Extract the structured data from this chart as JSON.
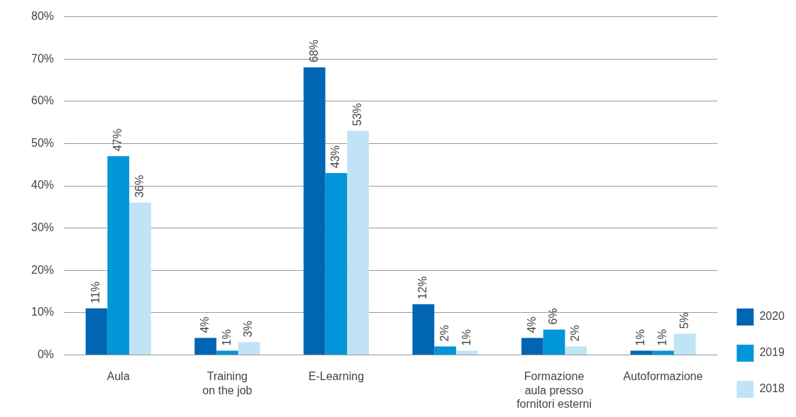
{
  "chart_data": {
    "type": "bar",
    "categories": [
      "Aula",
      "Training\non the job",
      "E-Learning",
      null,
      "Formazione\naula presso\nfornitori esterni",
      "Autoformazione"
    ],
    "series": [
      {
        "name": "2020",
        "color": "#0066b3",
        "values": [
          11,
          4,
          68,
          12,
          4,
          1
        ],
        "value_labels": [
          "11%",
          "4%",
          "68%",
          "12%",
          "4%",
          "1%"
        ]
      },
      {
        "name": "2019",
        "color": "#0096d9",
        "values": [
          47,
          1,
          43,
          2,
          6,
          1
        ],
        "value_labels": [
          "47%",
          "1%",
          "43%",
          "2%",
          "6%",
          "1%"
        ]
      },
      {
        "name": "2018",
        "color": "#c0e4f6",
        "values": [
          36,
          3,
          53,
          1,
          2,
          5
        ],
        "value_labels": [
          "36%",
          "3%",
          "53%",
          "1%",
          "2%",
          "5%"
        ]
      }
    ],
    "ylim": [
      0,
      80
    ],
    "yticks": [
      {
        "value": 0,
        "label": "0%"
      },
      {
        "value": 10,
        "label": "10%"
      },
      {
        "value": 20,
        "label": "20%"
      },
      {
        "value": 30,
        "label": "30%"
      },
      {
        "value": 40,
        "label": "40%"
      },
      {
        "value": 50,
        "label": "50%"
      },
      {
        "value": 60,
        "label": "60%"
      },
      {
        "value": 70,
        "label": "70%"
      },
      {
        "value": 80,
        "label": "80%"
      }
    ],
    "grid": "y",
    "legend": "right"
  }
}
